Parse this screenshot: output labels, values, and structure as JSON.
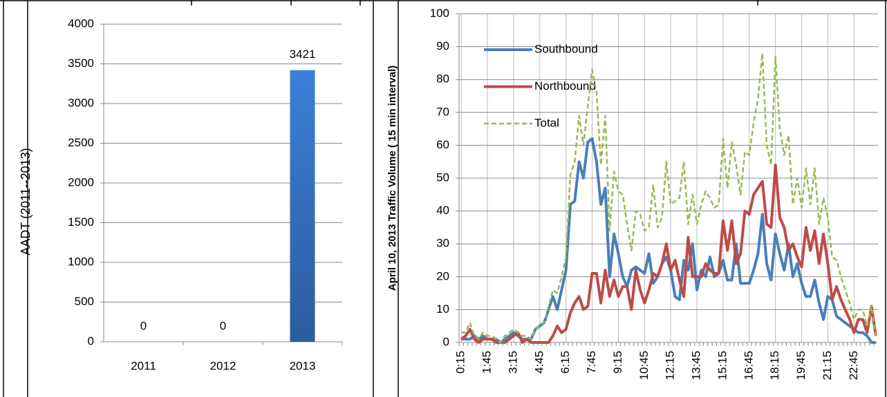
{
  "chart_data": [
    {
      "type": "bar",
      "y_label": "AADT (2011--2013)",
      "categories": [
        "2011",
        "2012",
        "2013"
      ],
      "values": [
        0,
        0,
        3421
      ],
      "color": "#3a76c9",
      "ylim": [
        0,
        4000
      ],
      "yticks": [
        0,
        500,
        1000,
        1500,
        2000,
        2500,
        3000,
        3500,
        4000
      ],
      "grid": true,
      "data_labels": true
    },
    {
      "type": "line",
      "y_label": "April 10, 2013 Traffic Volume ( 15 min interval)",
      "categories": [
        "0:15",
        null,
        null,
        null,
        null,
        null,
        "1:45",
        null,
        null,
        null,
        null,
        null,
        "3:15",
        null,
        null,
        null,
        null,
        null,
        "4:45",
        null,
        null,
        null,
        null,
        null,
        "6:15",
        null,
        null,
        null,
        null,
        null,
        "7:45",
        null,
        null,
        null,
        null,
        null,
        "9:15",
        null,
        null,
        null,
        null,
        null,
        "10:45",
        null,
        null,
        null,
        null,
        null,
        "12:15",
        null,
        null,
        null,
        null,
        null,
        "13:45",
        null,
        null,
        null,
        null,
        null,
        "15:15",
        null,
        null,
        null,
        null,
        null,
        "16:45",
        null,
        null,
        null,
        null,
        null,
        "18:15",
        null,
        null,
        null,
        null,
        null,
        "19:45",
        null,
        null,
        null,
        null,
        null,
        "21:15",
        null,
        null,
        null,
        null,
        null,
        "22:45",
        null,
        null,
        null,
        null,
        null
      ],
      "series": [
        {
          "name": "Southbound",
          "color": "#4a7ebb",
          "style": "solid",
          "values": [
            1,
            1,
            1,
            2,
            1,
            2,
            1,
            1,
            1,
            0,
            1,
            2,
            3,
            2,
            1,
            1,
            1,
            4,
            5,
            6,
            10,
            14,
            10,
            16,
            22,
            42,
            43,
            55,
            50,
            61,
            62,
            55,
            42,
            47,
            20,
            33,
            27,
            20,
            17,
            22,
            23,
            22,
            21,
            27,
            18,
            20,
            24,
            26,
            22,
            14,
            13,
            25,
            22,
            30,
            16,
            22,
            20,
            26,
            20,
            21,
            25,
            19,
            19,
            30,
            18,
            18,
            18,
            22,
            27,
            39,
            24,
            19,
            33,
            27,
            22,
            30,
            20,
            24,
            18,
            14,
            14,
            19,
            12,
            7,
            14,
            13,
            8,
            7,
            6,
            5,
            4,
            3,
            3,
            2,
            0,
            0
          ]
        },
        {
          "name": "Northbound",
          "color": "#be4b48",
          "style": "solid",
          "values": [
            1,
            2,
            4,
            1,
            0,
            1,
            1,
            1,
            0,
            0,
            0,
            1,
            2,
            3,
            0,
            1,
            0,
            0,
            0,
            0,
            0,
            2,
            5,
            3,
            4,
            9,
            12,
            14,
            10,
            11,
            21,
            21,
            12,
            22,
            14,
            19,
            14,
            17,
            17,
            10,
            22,
            16,
            12,
            16,
            21,
            20,
            24,
            30,
            22,
            25,
            19,
            14,
            32,
            20,
            20,
            20,
            24,
            22,
            21,
            21,
            37,
            28,
            37,
            24,
            27,
            40,
            39,
            45,
            47,
            49,
            36,
            35,
            54,
            38,
            35,
            28,
            30,
            26,
            23,
            35,
            28,
            34,
            24,
            33,
            24,
            13,
            17,
            13,
            10,
            7,
            3,
            7,
            7,
            3,
            11,
            2
          ]
        },
        {
          "name": "Total",
          "color": "#98b954",
          "style": "dashed",
          "values": [
            3,
            3,
            6,
            2,
            1,
            3,
            2,
            2,
            1,
            0,
            2,
            3,
            4,
            3,
            2,
            2,
            1,
            4,
            5,
            6,
            11,
            16,
            15,
            20,
            26,
            51,
            55,
            69,
            60,
            72,
            83,
            76,
            54,
            69,
            34,
            52,
            46,
            45,
            36,
            28,
            40,
            39,
            34,
            35,
            48,
            35,
            38,
            55,
            42,
            43,
            44,
            55,
            36,
            45,
            36,
            42,
            46,
            44,
            41,
            42,
            62,
            47,
            61,
            54,
            45,
            58,
            57,
            67,
            74,
            88,
            60,
            54,
            87,
            65,
            57,
            63,
            42,
            50,
            41,
            53,
            42,
            53,
            36,
            44,
            38,
            26,
            25,
            20,
            16,
            12,
            7,
            10,
            10,
            5,
            11,
            2
          ]
        }
      ],
      "ylim": [
        0,
        100
      ],
      "yticks": [
        0,
        10,
        20,
        30,
        40,
        50,
        60,
        70,
        80,
        90,
        100
      ],
      "grid": true,
      "legend": "upper left"
    }
  ]
}
